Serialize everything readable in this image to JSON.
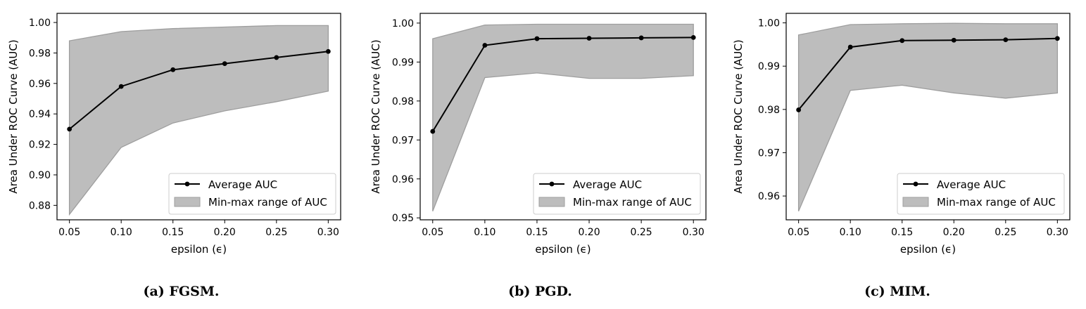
{
  "legend_labels": {
    "line": "Average AUC",
    "band": "Min-max range of AUC"
  },
  "xlabel": "epsilon (ϵ)",
  "ylabel": "Area Under ROC Curve (AUC)",
  "colors": {
    "line": "#000000",
    "band": "#bdbdbd",
    "band_edge": "#9e9e9e",
    "axes": "#000000"
  },
  "chart_data": [
    {
      "type": "area",
      "caption": "(a) FGSM.",
      "x": [
        0.05,
        0.1,
        0.15,
        0.2,
        0.25,
        0.3
      ],
      "x_ticks": [
        "0.05",
        "0.10",
        "0.15",
        "0.20",
        "0.25",
        "0.30"
      ],
      "xlim": [
        0.038,
        0.312
      ],
      "ylim": [
        0.8705,
        1.006
      ],
      "y_ticks": [
        0.88,
        0.9,
        0.92,
        0.94,
        0.96,
        0.98,
        1.0
      ],
      "y_tick_labels": [
        "0.88",
        "0.90",
        "0.92",
        "0.94",
        "0.96",
        "0.98",
        "1.00"
      ],
      "series": [
        {
          "name": "Average AUC",
          "values": [
            0.93,
            0.958,
            0.969,
            0.973,
            0.977,
            0.981
          ]
        },
        {
          "name": "Min-max range of AUC",
          "min": [
            0.874,
            0.918,
            0.934,
            0.942,
            0.948,
            0.955
          ],
          "max": [
            0.988,
            0.994,
            0.996,
            0.997,
            0.998,
            0.998
          ]
        }
      ],
      "legend_position": "lower-right",
      "grid": false
    },
    {
      "type": "area",
      "caption": "(b) PGD.",
      "x": [
        0.05,
        0.1,
        0.15,
        0.2,
        0.25,
        0.3
      ],
      "x_ticks": [
        "0.05",
        "0.10",
        "0.15",
        "0.20",
        "0.25",
        "0.30"
      ],
      "xlim": [
        0.038,
        0.312
      ],
      "ylim": [
        0.9495,
        1.0025
      ],
      "y_ticks": [
        0.95,
        0.96,
        0.97,
        0.98,
        0.99,
        1.0
      ],
      "y_tick_labels": [
        "0.95",
        "0.96",
        "0.97",
        "0.98",
        "0.99",
        "1.00"
      ],
      "series": [
        {
          "name": "Average AUC",
          "values": [
            0.9722,
            0.9943,
            0.996,
            0.9961,
            0.9962,
            0.9963
          ]
        },
        {
          "name": "Min-max range of AUC",
          "min": [
            0.9517,
            0.986,
            0.9872,
            0.9858,
            0.9858,
            0.9865
          ],
          "max": [
            0.996,
            0.9995,
            0.9997,
            0.9997,
            0.9997,
            0.9997
          ]
        }
      ],
      "legend_position": "lower-right",
      "grid": false
    },
    {
      "type": "area",
      "caption": "(c) MIM.",
      "x": [
        0.05,
        0.1,
        0.15,
        0.2,
        0.25,
        0.3
      ],
      "x_ticks": [
        "0.05",
        "0.10",
        "0.15",
        "0.20",
        "0.25",
        "0.30"
      ],
      "xlim": [
        0.038,
        0.312
      ],
      "ylim": [
        0.9545,
        1.0022
      ],
      "y_ticks": [
        0.96,
        0.97,
        0.98,
        0.99,
        1.0
      ],
      "y_tick_labels": [
        "0.96",
        "0.97",
        "0.98",
        "0.99",
        "1.00"
      ],
      "series": [
        {
          "name": "Average AUC",
          "values": [
            0.9799,
            0.9944,
            0.9959,
            0.996,
            0.9961,
            0.9964
          ]
        },
        {
          "name": "Min-max range of AUC",
          "min": [
            0.9565,
            0.9844,
            0.9856,
            0.9838,
            0.9826,
            0.9838
          ],
          "max": [
            0.9972,
            0.9996,
            0.9998,
            0.9999,
            0.9998,
            0.9998
          ]
        }
      ],
      "legend_position": "lower-right",
      "grid": false
    }
  ]
}
